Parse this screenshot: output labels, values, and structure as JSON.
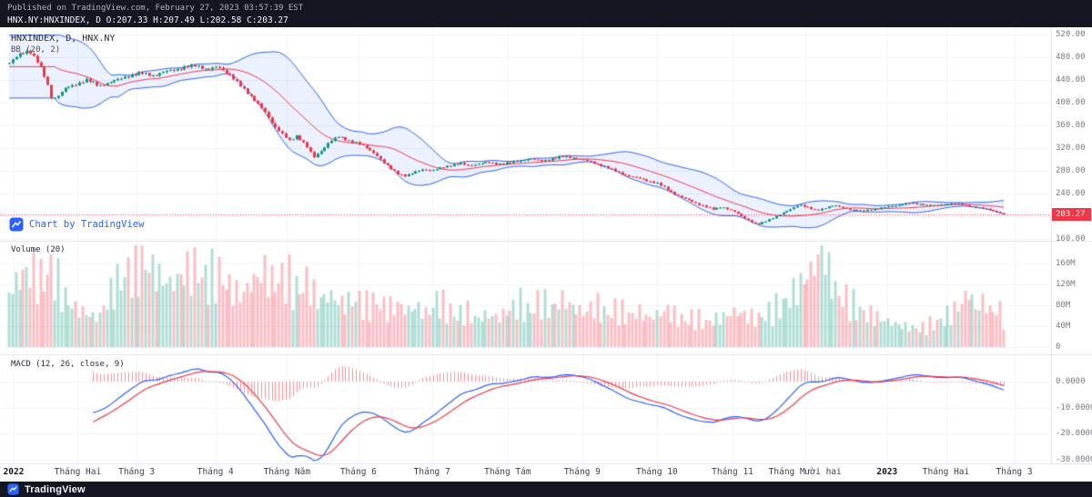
{
  "colors": {
    "bar_bg": "#131722",
    "up": "#089981",
    "down": "#f23645",
    "bb_line": "#2962ff",
    "bb_fill": "rgba(41,98,255,0.09)",
    "basis": "#f23645",
    "macd_line": "#2962ff",
    "signal_line": "#f23645",
    "hist": "rgba(242,54,69,0.55)",
    "grid": "#f0f3fa",
    "separator": "#e0e3eb",
    "axis_text": "#787b86",
    "watermark": "#2962ff",
    "badge_bg": "#f23645",
    "vol_up": "rgba(8,153,129,0.32)",
    "vol_down": "rgba(242,54,69,0.32)"
  },
  "header": {
    "published": "Published on TradingView.com, February 27, 2023 03:57:39 EST",
    "symbol_line": "HNX.NY:HNXINDEX, D O:207.33 H:207.49 L:202.58 C:203.27"
  },
  "quote": {
    "symbol": "HNX.NY:HNXINDEX",
    "interval": "D",
    "open": 207.33,
    "high": 207.49,
    "low": 202.58,
    "close": 203.27
  },
  "panels": {
    "main": {
      "legend_line1": "HNXINDEX, D, HNX.NY",
      "legend_line2": "BB (20, 2)"
    },
    "volume": {
      "legend": "Volume (20)"
    },
    "macd": {
      "legend": "MACD (12, 26, close, 9)"
    }
  },
  "watermark": {
    "label": "Chart by TradingView"
  },
  "footer": {
    "brand": "TradingView"
  },
  "last_price": {
    "label": "203.27",
    "value": 203.27
  },
  "price_scale": {
    "ticks": [
      {
        "label": "520.00",
        "value": 520
      },
      {
        "label": "480.00",
        "value": 480
      },
      {
        "label": "440.00",
        "value": 440
      },
      {
        "label": "400.00",
        "value": 400
      },
      {
        "label": "360.00",
        "value": 360
      },
      {
        "label": "320.00",
        "value": 320
      },
      {
        "label": "280.00",
        "value": 280
      },
      {
        "label": "240.00",
        "value": 240
      },
      {
        "label": "200.00",
        "value": 200
      },
      {
        "label": "160.00",
        "value": 160
      }
    ]
  },
  "volume_scale": {
    "ticks": [
      {
        "label": "160M",
        "value": 160
      },
      {
        "label": "120M",
        "value": 120
      },
      {
        "label": "80M",
        "value": 80
      },
      {
        "label": "40M",
        "value": 40
      },
      {
        "label": "0",
        "value": 0
      }
    ]
  },
  "macd_scale": {
    "ticks": [
      {
        "label": "0.0000",
        "value": 0
      },
      {
        "label": "-10.0000",
        "value": -10
      },
      {
        "label": "-20.0000",
        "value": -20
      },
      {
        "label": "-30.0000",
        "value": -30
      }
    ]
  },
  "time_axis": {
    "ticks": [
      {
        "label": "2022",
        "f": 0.013,
        "year": true
      },
      {
        "label": "Tháng Hai",
        "f": 0.074,
        "year": false
      },
      {
        "label": "Tháng 3",
        "f": 0.13,
        "year": false
      },
      {
        "label": "Tháng 4",
        "f": 0.205,
        "year": false
      },
      {
        "label": "Tháng Năm",
        "f": 0.273,
        "year": false
      },
      {
        "label": "Tháng 6",
        "f": 0.341,
        "year": false
      },
      {
        "label": "Tháng 7",
        "f": 0.411,
        "year": false
      },
      {
        "label": "Tháng Tám",
        "f": 0.483,
        "year": false
      },
      {
        "label": "Tháng 9",
        "f": 0.554,
        "year": false
      },
      {
        "label": "Tháng 10",
        "f": 0.625,
        "year": false
      },
      {
        "label": "Tháng 11",
        "f": 0.697,
        "year": false
      },
      {
        "label": "Tháng Mười hai",
        "f": 0.766,
        "year": false
      },
      {
        "label": "2023",
        "f": 0.844,
        "year": true
      },
      {
        "label": "Tháng Hai",
        "f": 0.9,
        "year": false
      },
      {
        "label": "Tháng 3",
        "f": 0.965,
        "year": false
      }
    ]
  },
  "chart_data": {
    "type": "candlestick",
    "symbol": "HNX.NY:HNXINDEX",
    "interval": "D",
    "title": "HNXINDEX daily with BB(20,2), Volume(20), MACD(12,26,close,9)",
    "indicators": [
      "BB (20, 2)",
      "Volume (20)",
      "MACD (12, 26, close, 9)"
    ],
    "price_range_visible": [
      157,
      533
    ],
    "volume_range_visible_M": [
      0,
      200
    ],
    "macd_range_visible": [
      -31.5,
      10.5
    ],
    "grid": true,
    "candle_count": 285,
    "last_ohlc": {
      "open": 207.33,
      "high": 207.49,
      "low": 202.58,
      "close": 203.27
    },
    "close_anchors": [
      [
        0.0,
        470
      ],
      [
        0.011,
        486
      ],
      [
        0.02,
        492
      ],
      [
        0.029,
        470
      ],
      [
        0.037,
        440
      ],
      [
        0.043,
        406
      ],
      [
        0.049,
        412
      ],
      [
        0.057,
        426
      ],
      [
        0.066,
        432
      ],
      [
        0.078,
        440
      ],
      [
        0.09,
        430
      ],
      [
        0.102,
        436
      ],
      [
        0.117,
        446
      ],
      [
        0.133,
        452
      ],
      [
        0.146,
        448
      ],
      [
        0.16,
        456
      ],
      [
        0.174,
        461
      ],
      [
        0.188,
        466
      ],
      [
        0.199,
        458
      ],
      [
        0.21,
        463
      ],
      [
        0.221,
        450
      ],
      [
        0.233,
        428
      ],
      [
        0.245,
        408
      ],
      [
        0.256,
        385
      ],
      [
        0.265,
        362
      ],
      [
        0.274,
        346
      ],
      [
        0.282,
        332
      ],
      [
        0.289,
        342
      ],
      [
        0.298,
        326
      ],
      [
        0.306,
        303
      ],
      [
        0.314,
        316
      ],
      [
        0.322,
        332
      ],
      [
        0.331,
        340
      ],
      [
        0.34,
        334
      ],
      [
        0.35,
        329
      ],
      [
        0.359,
        320
      ],
      [
        0.368,
        310
      ],
      [
        0.377,
        293
      ],
      [
        0.384,
        283
      ],
      [
        0.392,
        274
      ],
      [
        0.399,
        271
      ],
      [
        0.407,
        277
      ],
      [
        0.416,
        283
      ],
      [
        0.425,
        280
      ],
      [
        0.435,
        286
      ],
      [
        0.444,
        290
      ],
      [
        0.453,
        293
      ],
      [
        0.462,
        289
      ],
      [
        0.471,
        292
      ],
      [
        0.48,
        295
      ],
      [
        0.492,
        292
      ],
      [
        0.503,
        294
      ],
      [
        0.514,
        298
      ],
      [
        0.523,
        302
      ],
      [
        0.534,
        297
      ],
      [
        0.545,
        301
      ],
      [
        0.556,
        305
      ],
      [
        0.567,
        303
      ],
      [
        0.578,
        299
      ],
      [
        0.589,
        293
      ],
      [
        0.6,
        286
      ],
      [
        0.611,
        278
      ],
      [
        0.622,
        271
      ],
      [
        0.633,
        267
      ],
      [
        0.642,
        262
      ],
      [
        0.651,
        258
      ],
      [
        0.661,
        248
      ],
      [
        0.67,
        238
      ],
      [
        0.679,
        231
      ],
      [
        0.686,
        226
      ],
      [
        0.693,
        221
      ],
      [
        0.701,
        216
      ],
      [
        0.708,
        212
      ],
      [
        0.716,
        217
      ],
      [
        0.723,
        212
      ],
      [
        0.73,
        207
      ],
      [
        0.737,
        199
      ],
      [
        0.745,
        191
      ],
      [
        0.752,
        185
      ],
      [
        0.759,
        190
      ],
      [
        0.767,
        197
      ],
      [
        0.776,
        204
      ],
      [
        0.785,
        212
      ],
      [
        0.794,
        221
      ],
      [
        0.801,
        216
      ],
      [
        0.811,
        210
      ],
      [
        0.82,
        215
      ],
      [
        0.829,
        219
      ],
      [
        0.838,
        215
      ],
      [
        0.847,
        211
      ],
      [
        0.856,
        209
      ],
      [
        0.866,
        212
      ],
      [
        0.875,
        214
      ],
      [
        0.884,
        217
      ],
      [
        0.895,
        220
      ],
      [
        0.906,
        223
      ],
      [
        0.917,
        221
      ],
      [
        0.928,
        218
      ],
      [
        0.939,
        221
      ],
      [
        0.95,
        223
      ],
      [
        0.959,
        220
      ],
      [
        0.968,
        217
      ],
      [
        0.977,
        214
      ],
      [
        0.986,
        211
      ],
      [
        0.994,
        207
      ],
      [
        1.0,
        203.3
      ]
    ],
    "volume_anchors_M": [
      [
        0.0,
        105
      ],
      [
        0.01,
        130
      ],
      [
        0.02,
        148
      ],
      [
        0.033,
        125
      ],
      [
        0.043,
        150
      ],
      [
        0.055,
        95
      ],
      [
        0.066,
        75
      ],
      [
        0.08,
        62
      ],
      [
        0.09,
        55
      ],
      [
        0.1,
        95
      ],
      [
        0.112,
        130
      ],
      [
        0.125,
        150
      ],
      [
        0.138,
        162
      ],
      [
        0.15,
        135
      ],
      [
        0.163,
        120
      ],
      [
        0.175,
        140
      ],
      [
        0.188,
        150
      ],
      [
        0.199,
        125
      ],
      [
        0.21,
        140
      ],
      [
        0.221,
        115
      ],
      [
        0.233,
        98
      ],
      [
        0.245,
        125
      ],
      [
        0.256,
        145
      ],
      [
        0.266,
        120
      ],
      [
        0.277,
        135
      ],
      [
        0.29,
        105
      ],
      [
        0.3,
        125
      ],
      [
        0.31,
        88
      ],
      [
        0.322,
        100
      ],
      [
        0.335,
        82
      ],
      [
        0.35,
        92
      ],
      [
        0.36,
        75
      ],
      [
        0.37,
        88
      ],
      [
        0.38,
        70
      ],
      [
        0.392,
        82
      ],
      [
        0.4,
        68
      ],
      [
        0.41,
        78
      ],
      [
        0.42,
        62
      ],
      [
        0.43,
        90
      ],
      [
        0.44,
        72
      ],
      [
        0.45,
        58
      ],
      [
        0.46,
        68
      ],
      [
        0.47,
        52
      ],
      [
        0.48,
        62
      ],
      [
        0.492,
        56
      ],
      [
        0.503,
        72
      ],
      [
        0.514,
        82
      ],
      [
        0.523,
        65
      ],
      [
        0.534,
        88
      ],
      [
        0.545,
        72
      ],
      [
        0.556,
        92
      ],
      [
        0.567,
        76
      ],
      [
        0.578,
        66
      ],
      [
        0.589,
        80
      ],
      [
        0.6,
        62
      ],
      [
        0.611,
        72
      ],
      [
        0.622,
        58
      ],
      [
        0.633,
        68
      ],
      [
        0.642,
        55
      ],
      [
        0.651,
        62
      ],
      [
        0.661,
        72
      ],
      [
        0.67,
        58
      ],
      [
        0.68,
        50
      ],
      [
        0.69,
        56
      ],
      [
        0.7,
        46
      ],
      [
        0.71,
        52
      ],
      [
        0.72,
        60
      ],
      [
        0.73,
        68
      ],
      [
        0.74,
        62
      ],
      [
        0.75,
        54
      ],
      [
        0.76,
        60
      ],
      [
        0.77,
        72
      ],
      [
        0.78,
        85
      ],
      [
        0.79,
        105
      ],
      [
        0.8,
        130
      ],
      [
        0.81,
        155
      ],
      [
        0.818,
        192
      ],
      [
        0.825,
        135
      ],
      [
        0.833,
        100
      ],
      [
        0.843,
        88
      ],
      [
        0.853,
        72
      ],
      [
        0.863,
        62
      ],
      [
        0.875,
        55
      ],
      [
        0.886,
        48
      ],
      [
        0.895,
        42
      ],
      [
        0.906,
        38
      ],
      [
        0.917,
        34
      ],
      [
        0.928,
        44
      ],
      [
        0.939,
        52
      ],
      [
        0.95,
        68
      ],
      [
        0.958,
        85
      ],
      [
        0.965,
        108
      ],
      [
        0.972,
        72
      ],
      [
        0.98,
        88
      ],
      [
        0.988,
        64
      ],
      [
        0.994,
        76
      ],
      [
        1.0,
        55
      ]
    ]
  }
}
